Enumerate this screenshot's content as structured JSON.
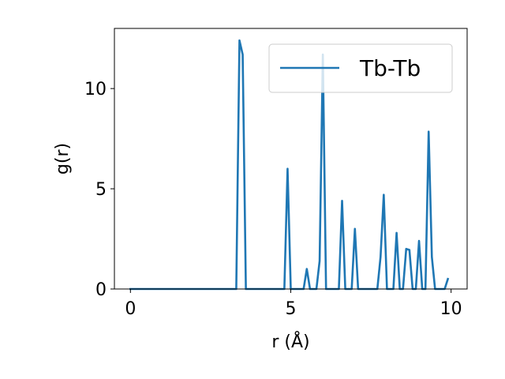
{
  "chart_data": {
    "type": "line",
    "xlabel": "r (Å)",
    "ylabel": "g(r)",
    "xlim": [
      -0.5,
      10.5
    ],
    "ylim": [
      0,
      13
    ],
    "xticks": [
      0,
      5,
      10
    ],
    "yticks": [
      0,
      5,
      10
    ],
    "grid": false,
    "legend_position": "top-right",
    "series": [
      {
        "name": "Tb-Tb",
        "color": "#1f77b4",
        "x": [
          0,
          0.1,
          0.2,
          0.3,
          0.4,
          0.5,
          0.6,
          0.7,
          0.8,
          0.9,
          1.0,
          1.1,
          1.2,
          1.3,
          1.4,
          1.5,
          1.6,
          1.7,
          1.8,
          1.9,
          2.0,
          2.1,
          2.2,
          2.3,
          2.4,
          2.5,
          2.6,
          2.7,
          2.8,
          2.9,
          3.0,
          3.1,
          3.2,
          3.3,
          3.4,
          3.5,
          3.6,
          3.7,
          3.8,
          3.9,
          4.0,
          4.1,
          4.2,
          4.3,
          4.4,
          4.5,
          4.6,
          4.7,
          4.8,
          4.9,
          5.0,
          5.1,
          5.2,
          5.3,
          5.4,
          5.5,
          5.6,
          5.7,
          5.8,
          5.9,
          6.0,
          6.1,
          6.2,
          6.3,
          6.4,
          6.5,
          6.6,
          6.7,
          6.8,
          6.9,
          7.0,
          7.1,
          7.2,
          7.3,
          7.4,
          7.5,
          7.6,
          7.7,
          7.8,
          7.9,
          8.0,
          8.1,
          8.2,
          8.3,
          8.4,
          8.5,
          8.6,
          8.7,
          8.8,
          8.9,
          9.0,
          9.1,
          9.2,
          9.3,
          9.4,
          9.5,
          9.6,
          9.7,
          9.8,
          9.9
        ],
        "y": [
          0,
          0,
          0,
          0,
          0,
          0,
          0,
          0,
          0,
          0,
          0,
          0,
          0,
          0,
          0,
          0,
          0,
          0,
          0,
          0,
          0,
          0,
          0,
          0,
          0,
          0,
          0,
          0,
          0,
          0,
          0,
          0,
          0,
          0,
          12.4,
          11.7,
          0,
          0,
          0,
          0,
          0,
          0,
          0,
          0,
          0,
          0,
          0,
          0,
          0,
          6.0,
          0,
          0,
          0,
          0,
          0,
          1.0,
          0,
          0,
          0,
          1.4,
          11.7,
          0,
          0,
          0,
          0,
          0,
          4.4,
          0,
          0,
          0,
          3.0,
          0,
          0,
          0,
          0,
          0,
          0,
          0,
          1.6,
          4.7,
          0,
          0,
          0,
          2.8,
          0,
          0,
          2.0,
          1.95,
          0,
          0,
          2.4,
          0,
          0,
          7.85,
          1.6,
          0,
          0,
          0,
          0,
          0.5
        ]
      }
    ]
  }
}
